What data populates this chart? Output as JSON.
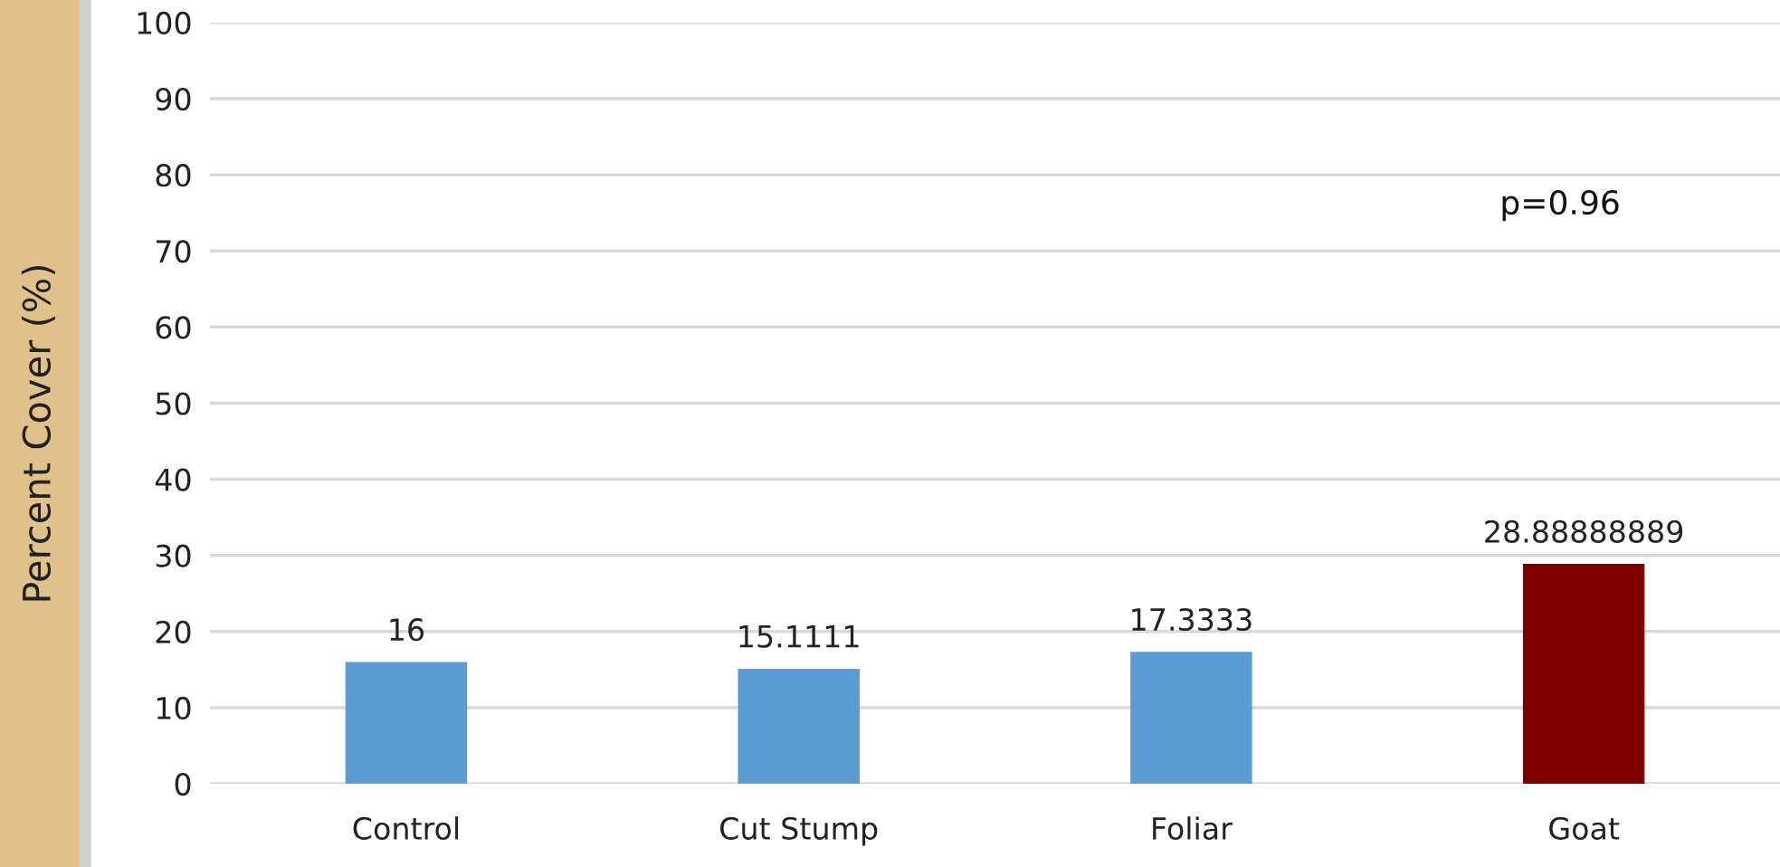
{
  "chart_data": {
    "type": "bar",
    "ylabel": "Percent Cover (%)",
    "categories": [
      "Control",
      "Cut Stump",
      "Foliar",
      "Goat"
    ],
    "values": [
      16,
      15.1111,
      17.3333,
      28.88888889
    ],
    "colors": [
      "#5b9bd5",
      "#5b9bd5",
      "#5b9bd5",
      "#800000"
    ],
    "ylim": [
      0,
      100
    ],
    "yticks": [
      0,
      10,
      20,
      30,
      40,
      50,
      60,
      70,
      80,
      90,
      100
    ],
    "grid": "y",
    "data_labels": true,
    "annotations": [
      "p=0.96"
    ]
  }
}
